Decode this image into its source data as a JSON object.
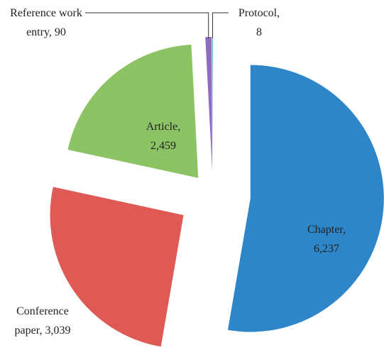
{
  "chart_data": {
    "type": "pie",
    "categories": [
      "Chapter,",
      "Conference paper,",
      "Article,",
      "Reference work entry,",
      "Protocol,"
    ],
    "values": [
      6237,
      3039,
      2459,
      90,
      8
    ],
    "value_labels": [
      "6,237",
      "3,039",
      "2,459",
      "90",
      "8"
    ],
    "colors": [
      "#2e86c8",
      "#e05a55",
      "#8cc365",
      "#8e6cbf",
      "#3aa0c0"
    ]
  }
}
